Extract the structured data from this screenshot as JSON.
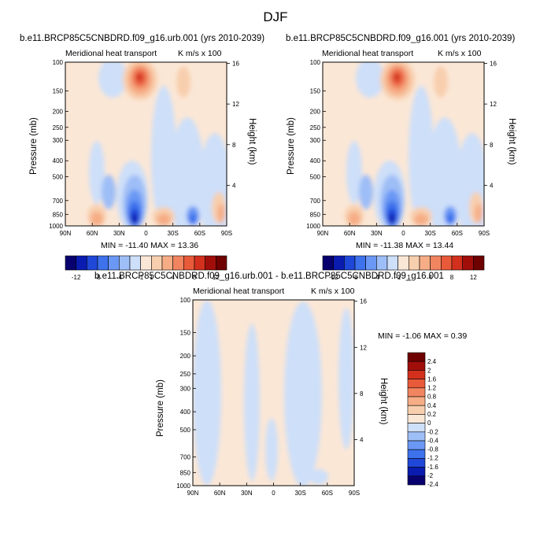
{
  "page_title": "DJF",
  "colors": {
    "levels": [
      "#08006e",
      "#0a1bb0",
      "#1f47d8",
      "#3d72ec",
      "#6b98f4",
      "#9ebef7",
      "#cddff9",
      "#fbe7d6",
      "#f8cfae",
      "#f6ad86",
      "#f08560",
      "#e85a3a",
      "#d2301d",
      "#a10e0a",
      "#6f0000"
    ],
    "diff_levels": [
      "#08006e",
      "#0a1bb0",
      "#1f47d8",
      "#3d72ec",
      "#6b98f4",
      "#9ebef7",
      "#cddff9",
      "#fbe7d6",
      "#f8cfae",
      "#f6ad86",
      "#f08560",
      "#e85a3a",
      "#d2301d",
      "#a10e0a",
      "#6f0000"
    ]
  },
  "chart_data": [
    {
      "type": "heatmap",
      "title": "b.e11.BRCP85C5CNBDRD.f09_g16.urb.001 (yrs 2010-2039)",
      "left_string": "Meridional heat transport",
      "right_string": "K m/s x 100",
      "xlabel": "",
      "ylabel": "Pressure (mb)",
      "ylabel_right": "Height (km)",
      "x_ticks": [
        "90N",
        "60N",
        "30N",
        "0",
        "30S",
        "60S",
        "90S"
      ],
      "y_ticks": [
        "100",
        "150",
        "200",
        "250",
        "300",
        "400",
        "500",
        "700",
        "850",
        "1000"
      ],
      "y_right_ticks": [
        "16",
        "12",
        "8",
        "4"
      ],
      "min_max": "MIN = -11.40   MAX =  13.36",
      "colorbar_labels": [
        "-12",
        "-8",
        "-4",
        "-1",
        "1",
        "4",
        "8",
        "12"
      ]
    },
    {
      "type": "heatmap",
      "title": "b.e11.BRCP85C5CNBDRD.f09_g16.001 (yrs 2010-2039)",
      "left_string": "Meridional heat transport",
      "right_string": "K m/s x 100",
      "xlabel": "",
      "ylabel": "Pressure (mb)",
      "ylabel_right": "Height (km)",
      "x_ticks": [
        "90N",
        "60N",
        "30N",
        "0",
        "30S",
        "60S",
        "90S"
      ],
      "y_ticks": [
        "100",
        "150",
        "200",
        "250",
        "300",
        "400",
        "500",
        "700",
        "850",
        "1000"
      ],
      "y_right_ticks": [
        "16",
        "12",
        "8",
        "4"
      ],
      "min_max": "MIN = -11.38   MAX =  13.44",
      "colorbar_labels": [
        "-12",
        "-8",
        "-4",
        "-1",
        "1",
        "4",
        "8",
        "12"
      ]
    },
    {
      "type": "heatmap",
      "title": "b.e11.BRCP85C5CNBDRD.f09_g16.urb.001 - b.e11.BRCP85C5CNBDRD.f09_g16.001",
      "left_string": "Meridional heat transport",
      "right_string": "K m/s x 100",
      "xlabel": "",
      "ylabel": "Pressure (mb)",
      "ylabel_right": "Height (km)",
      "x_ticks": [
        "90N",
        "60N",
        "30N",
        "0",
        "30S",
        "60S",
        "90S"
      ],
      "y_ticks": [
        "100",
        "150",
        "200",
        "250",
        "300",
        "400",
        "500",
        "700",
        "850",
        "1000"
      ],
      "y_right_ticks": [
        "16",
        "12",
        "8",
        "4"
      ],
      "min_max": "MIN =  -1.06   MAX =   0.39",
      "colorbar_labels": [
        "2.4",
        "2",
        "1.6",
        "1.2",
        "0.8",
        "0.4",
        "0.2",
        "0",
        "-0.2",
        "-0.4",
        "-0.8",
        "-1.2",
        "-1.6",
        "-2",
        "-2.4"
      ]
    }
  ]
}
